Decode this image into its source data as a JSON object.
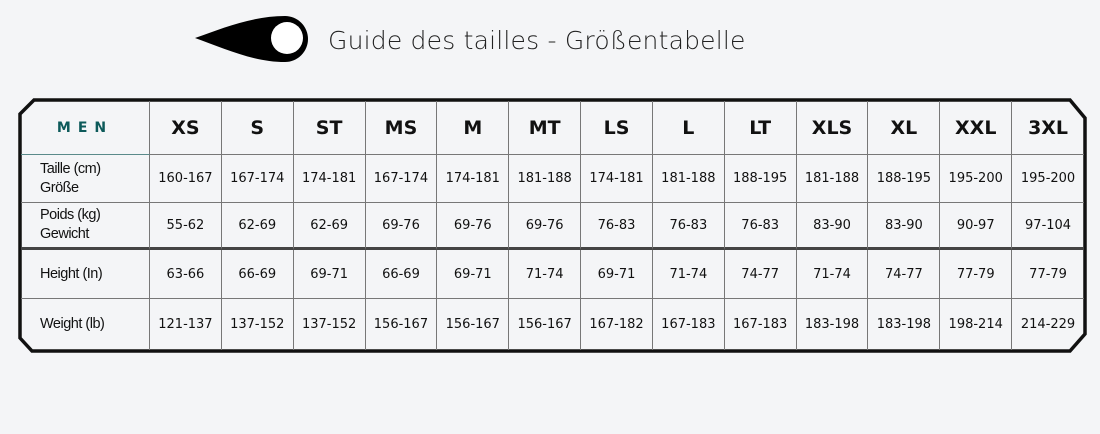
{
  "header": {
    "title": "Guide des tailles - Größentabelle",
    "logo_icon": "teardrop-logo-icon"
  },
  "table": {
    "section_label": "MEN",
    "sizes": [
      "XS",
      "S",
      "ST",
      "MS",
      "M",
      "MT",
      "LS",
      "L",
      "LT",
      "XLS",
      "XL",
      "XXL",
      "3XL"
    ],
    "rows": [
      {
        "label_line1": "Taille (cm)",
        "label_line2": "Größe",
        "values": [
          "160-167",
          "167-174",
          "174-181",
          "167-174",
          "174-181",
          "181-188",
          "174-181",
          "181-188",
          "188-195",
          "181-188",
          "188-195",
          "195-200",
          "195-200"
        ]
      },
      {
        "label_line1": "Poids (kg)",
        "label_line2": "Gewicht",
        "values": [
          "55-62",
          "62-69",
          "62-69",
          "69-76",
          "69-76",
          "69-76",
          "76-83",
          "76-83",
          "76-83",
          "83-90",
          "83-90",
          "90-97",
          "97-104"
        ]
      },
      {
        "label_line1": "Height (In)",
        "label_line2": "",
        "values": [
          "63-66",
          "66-69",
          "69-71",
          "66-69",
          "69-71",
          "71-74",
          "69-71",
          "71-74",
          "74-77",
          "71-74",
          "74-77",
          "77-79",
          "77-79"
        ]
      },
      {
        "label_line1": "Weight (lb)",
        "label_line2": "",
        "values": [
          "121-137",
          "137-152",
          "137-152",
          "156-167",
          "156-167",
          "156-167",
          "167-182",
          "167-183",
          "167-183",
          "183-198",
          "183-198",
          "198-214",
          "214-229"
        ]
      }
    ]
  },
  "colors": {
    "accent": "#0d5a5a",
    "border": "#111111",
    "background": "#f4f5f7"
  }
}
